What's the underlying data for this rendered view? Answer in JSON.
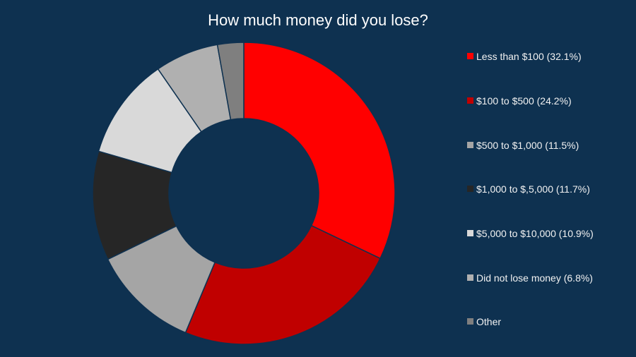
{
  "chart_data": {
    "type": "pie",
    "subtype": "donut",
    "title": "How much money did you lose?",
    "legend_position": "right",
    "slices": [
      {
        "label": "Less than $100 (32.1%)",
        "value": 32.1,
        "color": "#ff0000"
      },
      {
        "label": "$100 to $500 (24.2%)",
        "value": 24.2,
        "color": "#c00000"
      },
      {
        "label": "$500 to $1,000 (11.5%)",
        "value": 11.5,
        "color": "#a5a5a5"
      },
      {
        "label": "$1,000 to $,5,000 (11.7%)",
        "value": 11.7,
        "color": "#262626"
      },
      {
        "label": "$5,000 to $10,000 (10.9%)",
        "value": 10.9,
        "color": "#d9d9d9"
      },
      {
        "label": "Did not lose money (6.8%)",
        "value": 6.8,
        "color": "#b0b0b0"
      },
      {
        "label": "Other",
        "value": 2.8,
        "color": "#7f7f7f"
      }
    ]
  },
  "background": "#0e3150"
}
